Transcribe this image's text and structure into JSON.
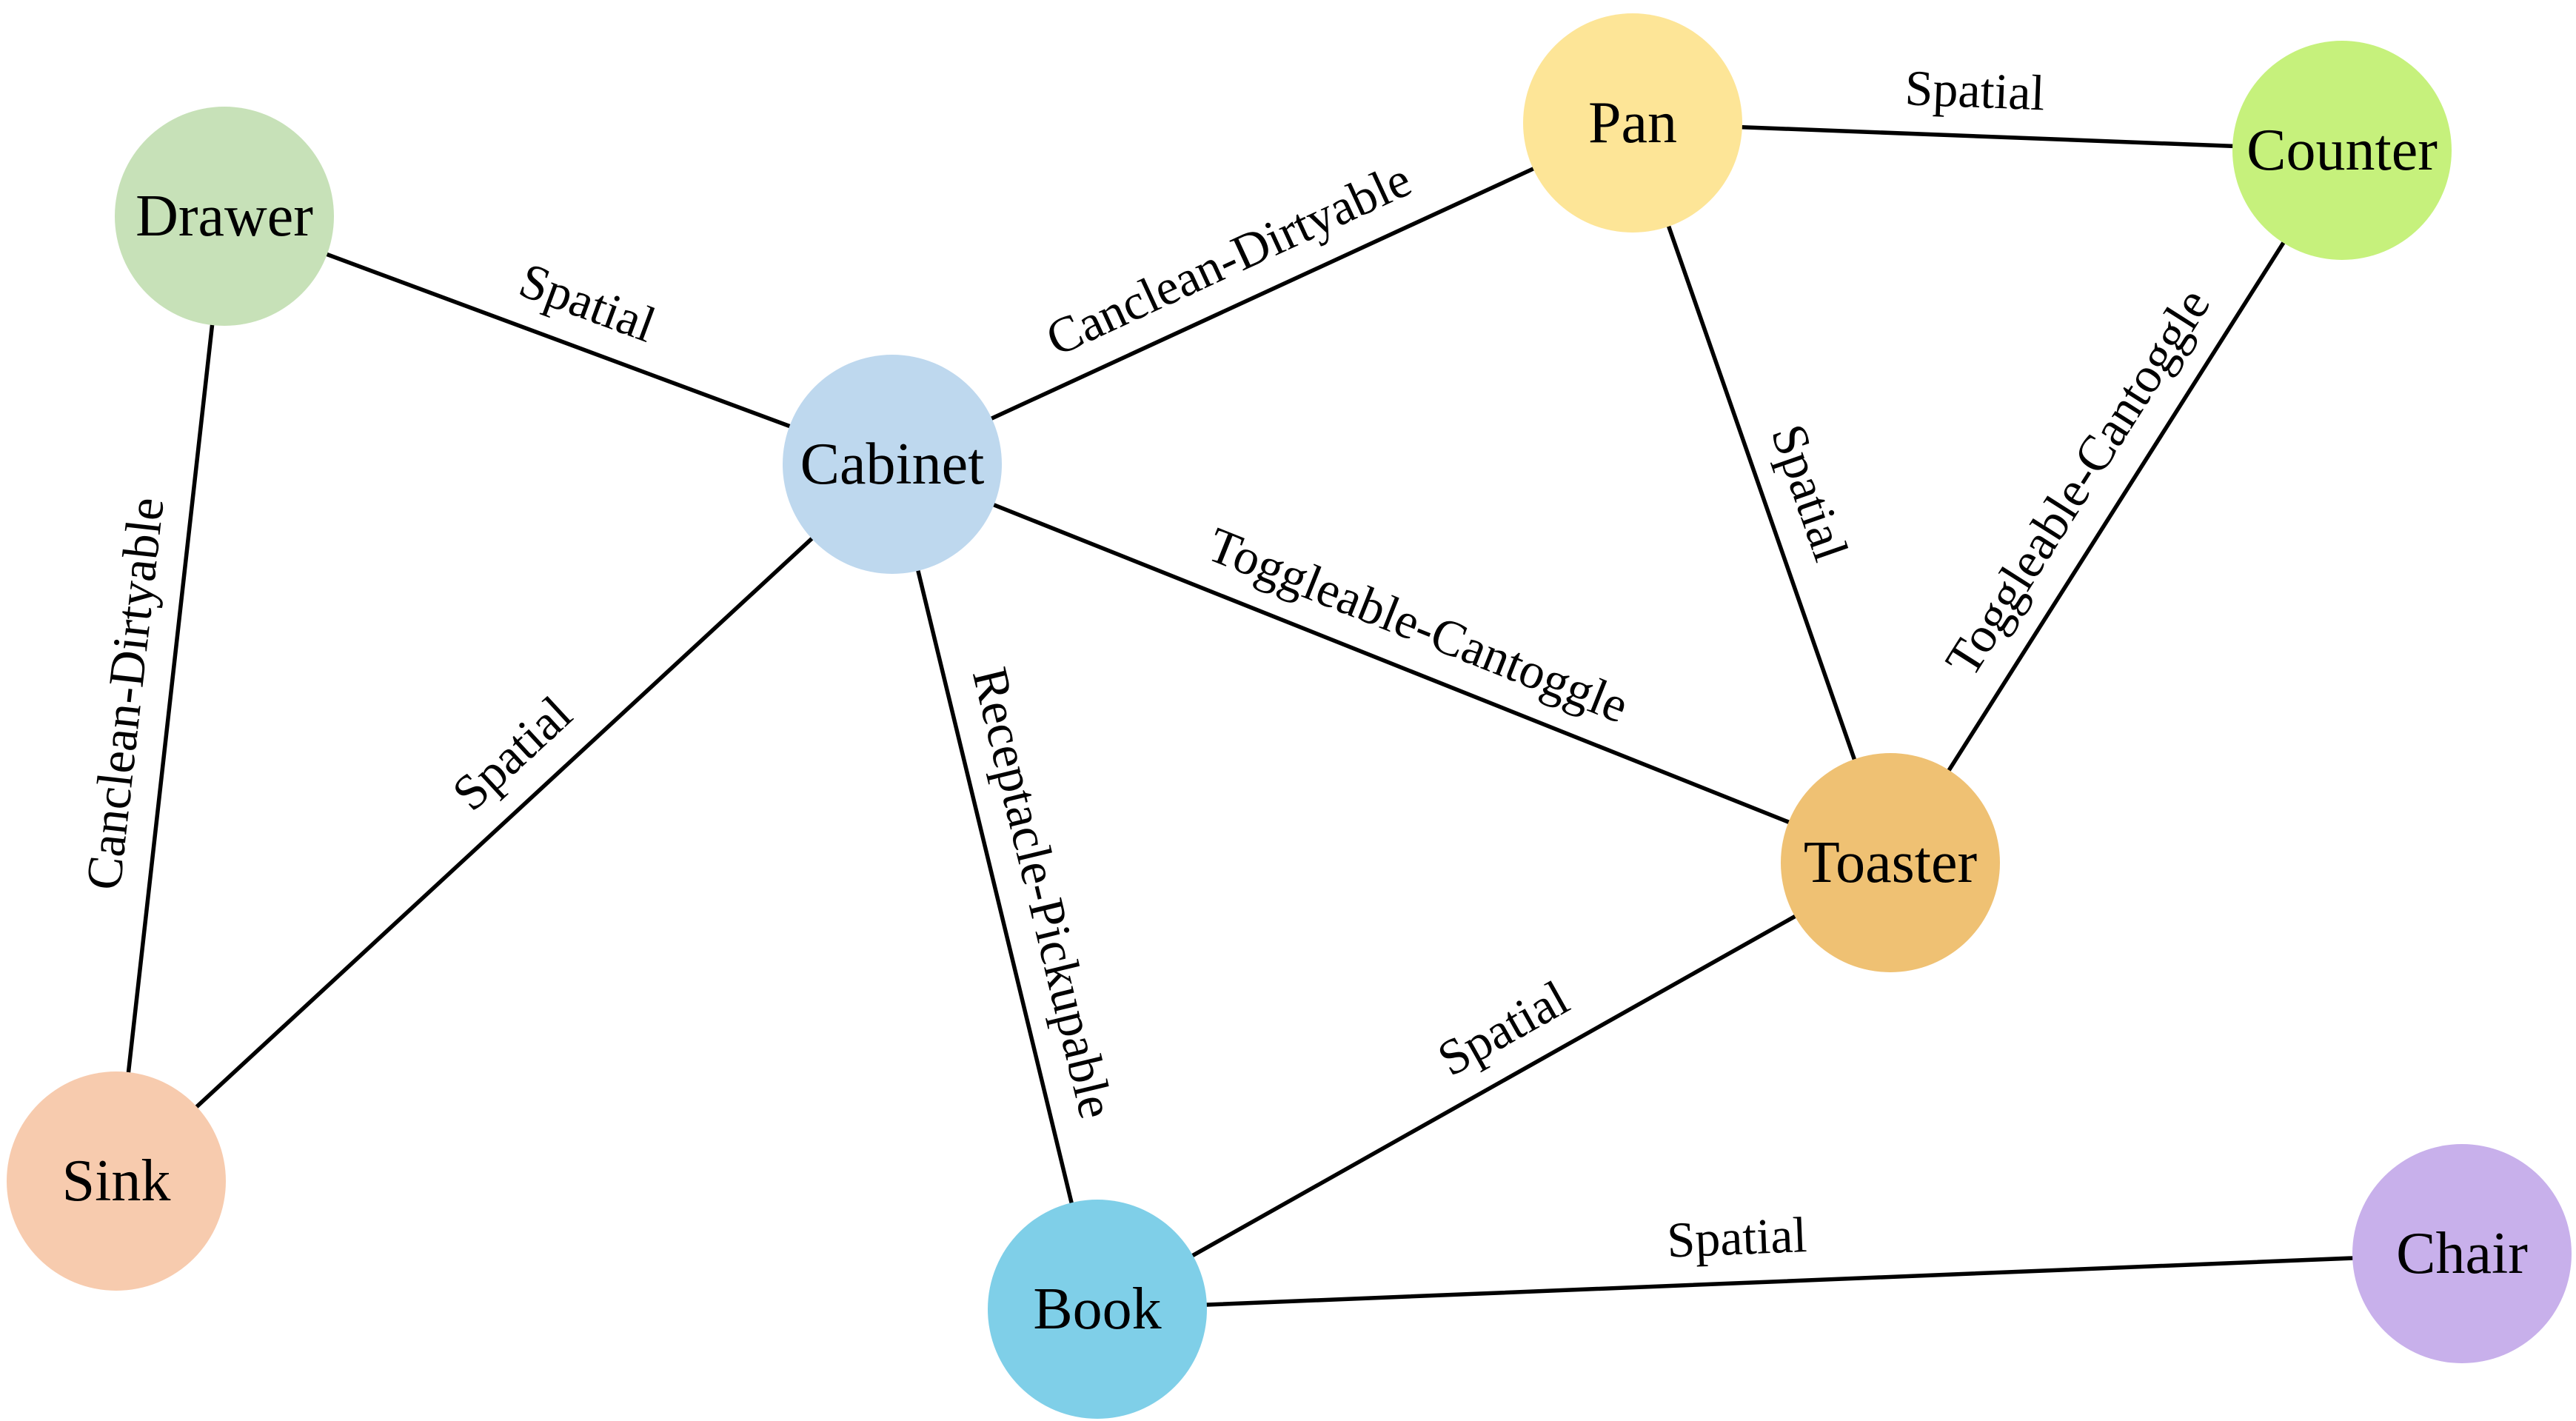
{
  "nodes": [
    {
      "id": "drawer",
      "label": "Drawer",
      "color": "#c7e1b8"
    },
    {
      "id": "cabinet",
      "label": "Cabinet",
      "color": "#bed8ee"
    },
    {
      "id": "pan",
      "label": "Pan",
      "color": "#fde597"
    },
    {
      "id": "counter",
      "label": "Counter",
      "color": "#c6f17c"
    },
    {
      "id": "toaster",
      "label": "Toaster",
      "color": "#efc173"
    },
    {
      "id": "sink",
      "label": "Sink",
      "color": "#f7cbae"
    },
    {
      "id": "book",
      "label": "Book",
      "color": "#7fcfe8"
    },
    {
      "id": "chair",
      "label": "Chair",
      "color": "#c8b0eb"
    }
  ],
  "edges": [
    {
      "id": "drawer-cabinet",
      "from": "drawer",
      "to": "cabinet",
      "label": "Spatial"
    },
    {
      "id": "drawer-sink",
      "from": "drawer",
      "to": "sink",
      "label": "Canclean-Dirtyable"
    },
    {
      "id": "cabinet-pan",
      "from": "cabinet",
      "to": "pan",
      "label": "Canclean-Dirtyable"
    },
    {
      "id": "cabinet-sink",
      "from": "cabinet",
      "to": "sink",
      "label": "Spatial"
    },
    {
      "id": "cabinet-toaster",
      "from": "cabinet",
      "to": "toaster",
      "label": "Toggleable-Cantoggle"
    },
    {
      "id": "cabinet-book",
      "from": "cabinet",
      "to": "book",
      "label": "Receptacle-Pickupable"
    },
    {
      "id": "pan-counter",
      "from": "pan",
      "to": "counter",
      "label": "Spatial"
    },
    {
      "id": "pan-toaster",
      "from": "pan",
      "to": "toaster",
      "label": "Spatial"
    },
    {
      "id": "counter-toaster",
      "from": "counter",
      "to": "toaster",
      "label": "Toggleable-Cantoggle"
    },
    {
      "id": "toaster-book",
      "from": "toaster",
      "to": "book",
      "label": "Spatial"
    },
    {
      "id": "book-chair",
      "from": "book",
      "to": "chair",
      "label": "Spatial"
    }
  ]
}
